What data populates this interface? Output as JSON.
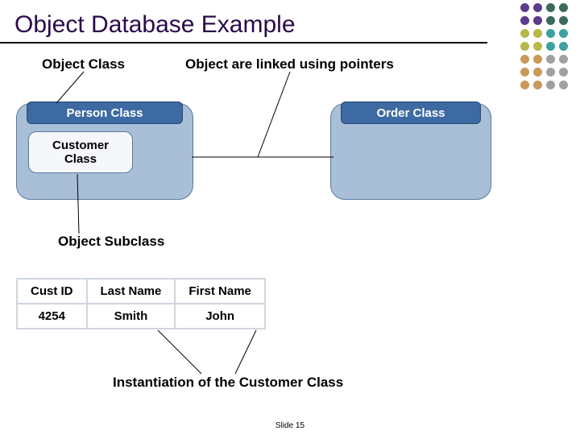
{
  "slide": {
    "title": "Object Database Example",
    "footer": "Slide 15",
    "title_color": "#2a0a4a",
    "title_fontsize": 30
  },
  "dots": {
    "colors": [
      "#5e3a8c",
      "#5e3a8c",
      "#3a6a5a",
      "#3a6a5a",
      "#5e3a8c",
      "#5e3a8c",
      "#3a6a5a",
      "#3a6a5a",
      "#b8b84a",
      "#b8b84a",
      "#3aa0a0",
      "#3aa0a0",
      "#b8b84a",
      "#b8b84a",
      "#3aa0a0",
      "#3aa0a0",
      "#c89a5a",
      "#c89a5a",
      "#a0a0a0",
      "#a0a0a0",
      "#c89a5a",
      "#c89a5a",
      "#a0a0a0",
      "#a0a0a0",
      "#c89a5a",
      "#c89a5a",
      "#a0a0a0",
      "#a0a0a0"
    ]
  },
  "labels": {
    "object_class": "Object Class",
    "linked_pointers": "Object are linked using pointers",
    "subclass": "Object Subclass",
    "instantiation": "Instantiation of the Customer Class"
  },
  "classes": {
    "person": {
      "header": "Person Class"
    },
    "order": {
      "header": "Order Class"
    },
    "customer": {
      "label": "Customer\nClass"
    }
  },
  "table": {
    "headers": [
      "Cust ID",
      "Last Name",
      "First Name"
    ],
    "row": [
      "4254",
      "Smith",
      "John"
    ]
  },
  "styling": {
    "box_bg": "#a9bfd8",
    "box_border": "#5b7aa0",
    "header_bg": "#3d6aa3",
    "header_text": "#ffffff",
    "line_color": "#000000",
    "table_border": "#d0d6de",
    "label_fontsize": 17
  }
}
